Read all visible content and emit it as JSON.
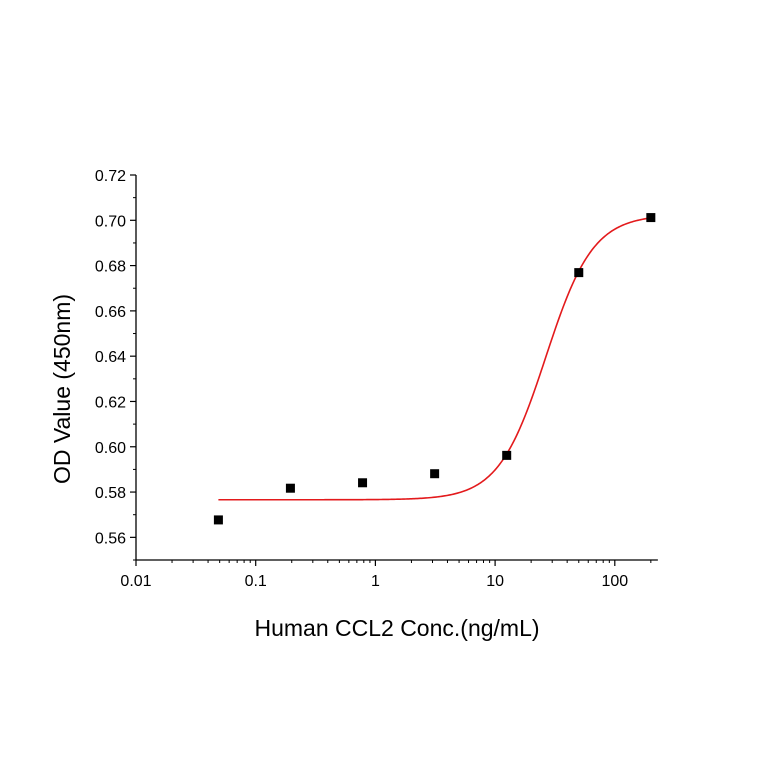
{
  "chart_data": {
    "type": "scatter",
    "title": "",
    "xlabel": "Human CCL2 Conc.(ng/mL)",
    "ylabel": "OD Value (450nm)",
    "x_scale": "log",
    "xlim": [
      0.01,
      229
    ],
    "ylim": [
      0.55,
      0.72
    ],
    "x_ticks": [
      0.01,
      0.1,
      1,
      10,
      100
    ],
    "x_tick_labels": [
      "0.01",
      "0.1",
      "1",
      "10",
      "100"
    ],
    "y_ticks": [
      0.56,
      0.58,
      0.6,
      0.62,
      0.64,
      0.66,
      0.68,
      0.7,
      0.72
    ],
    "y_tick_labels": [
      "0.56",
      "0.58",
      "0.60",
      "0.62",
      "0.64",
      "0.66",
      "0.68",
      "0.70",
      "0.72"
    ],
    "grid": false,
    "legend": "none",
    "points": {
      "x": [
        0.0488,
        0.195,
        0.781,
        3.125,
        12.5,
        50,
        200
      ],
      "y": [
        0.5677,
        0.5817,
        0.5841,
        0.5881,
        0.5962,
        0.6769,
        0.7012
      ],
      "marker": "square",
      "color": "#000000"
    },
    "fit": {
      "model": "4PL",
      "bottom": 0.5766,
      "top": 0.7025,
      "ec50": 26.5,
      "hill": 2.2,
      "x_range": [
        0.0488,
        200
      ],
      "color": "#e31a1c"
    }
  }
}
